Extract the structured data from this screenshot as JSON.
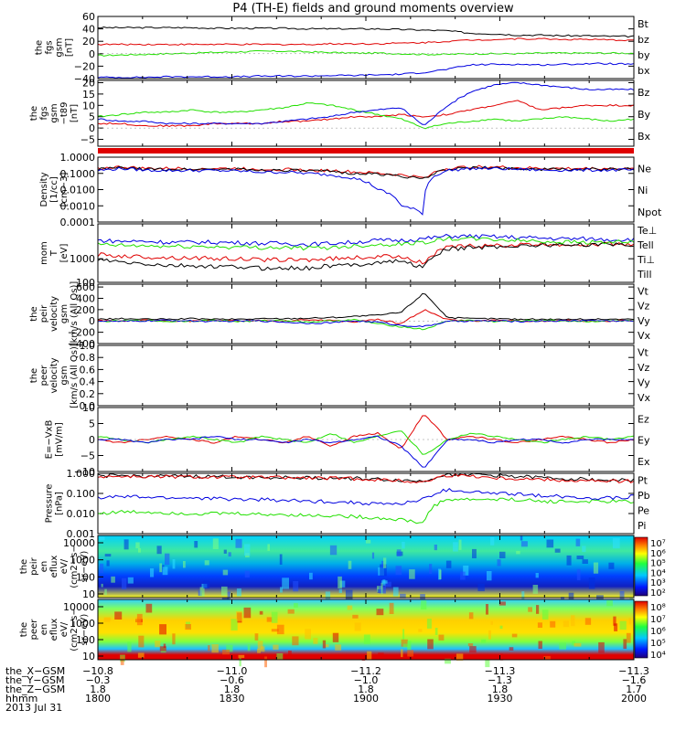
{
  "page": {
    "title": "P4 (TH-E) fields and ground moments overview"
  },
  "colors": {
    "black": "#000000",
    "red": "#e00000",
    "green": "#22e000",
    "blue": "#0000e0"
  },
  "chart_data": [
    {
      "type": "line",
      "ylabel": [
        "the",
        "fgs",
        "gsm",
        "[nT]"
      ],
      "ylim": [
        -40,
        60
      ],
      "yticks": [
        {
          "v": 60,
          "label": "60"
        },
        {
          "v": 40,
          "label": "40"
        },
        {
          "v": 20,
          "label": "20"
        },
        {
          "v": 0,
          "label": "0"
        },
        {
          "v": -20,
          "label": "−20"
        },
        {
          "v": -40,
          "label": "−40"
        }
      ],
      "series": [
        {
          "name": "Bt",
          "color": "#000000",
          "values": [
            42,
            42,
            42,
            42,
            42,
            41,
            41,
            41,
            41,
            40,
            40,
            40,
            40,
            39,
            38,
            37,
            33,
            32,
            30,
            30,
            29,
            29,
            28,
            28
          ]
        },
        {
          "name": "bz",
          "color": "#e00000",
          "values": [
            15,
            15,
            15,
            15,
            15,
            15,
            15,
            15,
            15,
            15,
            16,
            16,
            16,
            17,
            18,
            20,
            22,
            23,
            24,
            24,
            23,
            23,
            22,
            22
          ]
        },
        {
          "name": "by",
          "color": "#22e000",
          "values": [
            -3,
            -2,
            -1,
            0,
            1,
            2,
            3,
            4,
            4,
            3,
            2,
            1,
            1,
            0,
            -1,
            -1,
            0,
            0,
            0,
            1,
            1,
            1,
            1,
            1
          ]
        },
        {
          "name": "bx",
          "color": "#0000e0",
          "values": [
            -38,
            -38,
            -38,
            -37,
            -37,
            -37,
            -37,
            -36,
            -36,
            -36,
            -35,
            -35,
            -34,
            -33,
            -30,
            -25,
            -18,
            -17,
            -17,
            -18,
            -17,
            -16,
            -16,
            -17
          ]
        }
      ]
    },
    {
      "type": "line",
      "ylabel": [
        "the",
        "fgs",
        "gsm",
        "−t89",
        "[nT]"
      ],
      "ylim": [
        -8,
        21
      ],
      "yticks": [
        {
          "v": 20,
          "label": "20"
        },
        {
          "v": 15,
          "label": "15"
        },
        {
          "v": 10,
          "label": "10"
        },
        {
          "v": 5,
          "label": "5"
        },
        {
          "v": 0,
          "label": "0"
        },
        {
          "v": -5,
          "label": "−5"
        }
      ],
      "series": [
        {
          "name": "Bz",
          "color": "#e00000",
          "values": [
            2,
            2,
            1,
            1,
            1,
            2,
            2,
            2,
            3,
            3,
            4,
            5,
            5,
            6,
            5,
            6,
            8,
            10,
            12,
            8,
            9,
            10,
            10,
            10
          ]
        },
        {
          "name": "By",
          "color": "#22e000",
          "values": [
            5,
            6,
            7,
            7,
            8,
            7,
            7,
            8,
            9,
            11,
            10,
            8,
            6,
            4,
            0,
            2,
            3,
            4,
            3,
            4,
            5,
            4,
            3,
            4
          ]
        },
        {
          "name": "Bx",
          "color": "#0000e0",
          "values": [
            4,
            3,
            3,
            2,
            2,
            2,
            2,
            2,
            3,
            4,
            5,
            7,
            8,
            9,
            1,
            10,
            16,
            19,
            20,
            19,
            18,
            17,
            17,
            17
          ]
        }
      ]
    },
    {
      "type": "line",
      "ylabel": [
        "Density",
        "[1/cc]",
        "[cm−3]"
      ],
      "scale": "log",
      "ylim": [
        0.0001,
        1
      ],
      "yticks": [
        {
          "v": 1,
          "label": "1.0000"
        },
        {
          "v": 0.1,
          "label": "0.1000"
        },
        {
          "v": 0.01,
          "label": "0.0100"
        },
        {
          "v": 0.001,
          "label": "0.0010"
        },
        {
          "v": 0.0001,
          "label": "0.0001"
        }
      ],
      "series": [
        {
          "name": "Ne",
          "color": "#e00000",
          "values": [
            0.2,
            0.25,
            0.2,
            0.2,
            0.2,
            0.2,
            0.2,
            0.18,
            0.18,
            0.15,
            0.15,
            0.12,
            0.1,
            0.08,
            0.05,
            0.2,
            0.25,
            0.25,
            0.22,
            0.2,
            0.2,
            0.2,
            0.2,
            0.2
          ]
        },
        {
          "name": "Ni",
          "color": "#000000",
          "values": [
            0.18,
            0.22,
            0.18,
            0.18,
            0.18,
            0.18,
            0.18,
            0.16,
            0.16,
            0.14,
            0.13,
            0.1,
            0.09,
            0.07,
            0.04,
            0.18,
            0.22,
            0.22,
            0.2,
            0.18,
            0.18,
            0.18,
            0.18,
            0.18
          ]
        },
        {
          "name": "Npot",
          "color": "#0000e0",
          "values": [
            0.15,
            0.2,
            0.16,
            0.15,
            0.15,
            0.15,
            0.14,
            0.12,
            0.12,
            0.1,
            0.08,
            0.05,
            0.01,
            0.001,
            0.0003,
            0.15,
            0.2,
            0.2,
            0.18,
            0.16,
            0.16,
            0.16,
            0.16,
            0.16
          ]
        }
      ]
    },
    {
      "type": "line",
      "ylabel": [
        "mom",
        "T",
        "[eV]"
      ],
      "scale": "log",
      "ylim": [
        100,
        30000
      ],
      "yticks": [
        {
          "v": 1000,
          "label": "1000"
        },
        {
          "v": 100,
          "label": "100"
        }
      ],
      "series": [
        {
          "name": "Te⊥",
          "color": "#e00000",
          "values": [
            1500,
            1300,
            1200,
            1100,
            1100,
            1000,
            1000,
            900,
            900,
            900,
            1000,
            1100,
            1200,
            1300,
            600,
            3000,
            3500,
            3500,
            3800,
            4000,
            4000,
            4000,
            4200,
            4200
          ]
        },
        {
          "name": "Tell",
          "color": "#000000",
          "values": [
            900,
            700,
            600,
            500,
            500,
            450,
            450,
            400,
            400,
            400,
            500,
            550,
            700,
            800,
            400,
            2500,
            3000,
            3200,
            3500,
            3800,
            3800,
            4000,
            4000,
            4000
          ]
        },
        {
          "name": "Ti⊥",
          "color": "#0000e0",
          "values": [
            6000,
            5500,
            5500,
            5000,
            5000,
            5000,
            4800,
            4500,
            4500,
            4000,
            4500,
            5000,
            6000,
            6000,
            7000,
            9000,
            9000,
            8500,
            8000,
            7500,
            7000,
            7000,
            6500,
            6500
          ]
        },
        {
          "name": "Till",
          "color": "#22e000",
          "values": [
            4000,
            3600,
            3500,
            3300,
            3300,
            3200,
            3100,
            3000,
            3000,
            2800,
            3000,
            3500,
            4000,
            4200,
            5000,
            7000,
            7000,
            6500,
            6000,
            5500,
            5200,
            5000,
            5000,
            5000
          ]
        }
      ]
    },
    {
      "type": "line",
      "ylabel": [
        "the",
        "peir",
        "velocity",
        "gsm",
        "[km/s (All Qs)]"
      ],
      "ylim": [
        -400,
        650
      ],
      "yticks": [
        {
          "v": 600,
          "label": "600"
        },
        {
          "v": 400,
          "label": "400"
        },
        {
          "v": 200,
          "label": "200"
        },
        {
          "v": 0,
          "label": "0"
        },
        {
          "v": -200,
          "label": "−200"
        },
        {
          "v": -400,
          "label": "−400"
        }
      ],
      "series": [
        {
          "name": "Vt",
          "color": "#000000",
          "values": [
            30,
            40,
            30,
            30,
            40,
            30,
            30,
            40,
            40,
            50,
            60,
            80,
            100,
            150,
            500,
            60,
            40,
            40,
            30,
            30,
            30,
            30,
            30,
            30
          ]
        },
        {
          "name": "Vz",
          "color": "#e00000",
          "values": [
            10,
            0,
            10,
            0,
            -10,
            10,
            0,
            10,
            0,
            20,
            10,
            -20,
            30,
            -50,
            200,
            20,
            0,
            10,
            0,
            0,
            10,
            0,
            0,
            10
          ]
        },
        {
          "name": "Vy",
          "color": "#22e000",
          "values": [
            -10,
            0,
            10,
            -10,
            0,
            10,
            -10,
            0,
            10,
            -20,
            0,
            20,
            -50,
            -100,
            -150,
            0,
            10,
            -10,
            0,
            10,
            0,
            -10,
            0,
            0
          ]
        },
        {
          "name": "Vx",
          "color": "#0000e0",
          "values": [
            0,
            -10,
            0,
            10,
            0,
            -10,
            0,
            0,
            -20,
            -40,
            -30,
            0,
            -20,
            -80,
            -100,
            -10,
            0,
            0,
            -10,
            0,
            0,
            10,
            0,
            0
          ]
        }
      ]
    },
    {
      "type": "line",
      "ylabel": [
        "the",
        "peer",
        "velocity",
        "gsm",
        "[km/s (All Qs)]"
      ],
      "ylim": [
        0,
        1
      ],
      "yticks": [
        {
          "v": 1,
          "label": "1.0"
        },
        {
          "v": 0.8,
          "label": "0.8"
        },
        {
          "v": 0.6,
          "label": "0.6"
        },
        {
          "v": 0.4,
          "label": "0.4"
        },
        {
          "v": 0.2,
          "label": "0.2"
        },
        {
          "v": 0,
          "label": "0.0"
        }
      ],
      "series": [
        {
          "name": "Vt",
          "color": "#000000",
          "values": []
        },
        {
          "name": "Vz",
          "color": "#e00000",
          "values": []
        },
        {
          "name": "Vy",
          "color": "#22e000",
          "values": []
        },
        {
          "name": "Vx",
          "color": "#0000e0",
          "values": []
        }
      ]
    },
    {
      "type": "line",
      "ylabel": [
        "E=−VxB",
        "[mV/m]"
      ],
      "ylim": [
        -10,
        10
      ],
      "yticks": [
        {
          "v": 10,
          "label": "10"
        },
        {
          "v": 5,
          "label": "5"
        },
        {
          "v": 0,
          "label": "0"
        },
        {
          "v": -5,
          "label": "−5"
        },
        {
          "v": -10,
          "label": "−10"
        }
      ],
      "series": [
        {
          "name": "Ez",
          "color": "#e00000",
          "values": [
            0,
            -1,
            0,
            1,
            0,
            -1,
            1,
            0,
            -1,
            1,
            -2,
            1,
            2,
            -3,
            8,
            0,
            1,
            0,
            -1,
            0,
            1,
            0,
            -1,
            0
          ]
        },
        {
          "name": "Ey",
          "color": "#22e000",
          "values": [
            1,
            0,
            -1,
            0,
            1,
            0,
            -1,
            1,
            0,
            -1,
            2,
            -1,
            1,
            3,
            -5,
            0,
            2,
            1,
            0,
            -1,
            0,
            1,
            0,
            1
          ]
        },
        {
          "name": "Ex",
          "color": "#0000e0",
          "values": [
            0,
            0,
            -1,
            0,
            0,
            1,
            0,
            0,
            -1,
            0,
            -1,
            0,
            1,
            -2,
            -9,
            0,
            0,
            -1,
            0,
            0,
            -1,
            0,
            0,
            0
          ]
        }
      ]
    },
    {
      "type": "line",
      "ylabel": [
        "Pressure",
        "[nPa]"
      ],
      "scale": "log",
      "ylim": [
        0.001,
        1
      ],
      "yticks": [
        {
          "v": 1,
          "label": "1.000"
        },
        {
          "v": 0.1,
          "label": "0.100"
        },
        {
          "v": 0.01,
          "label": "0.010"
        },
        {
          "v": 0.001,
          "label": "0.001"
        }
      ],
      "series": [
        {
          "name": "Pt",
          "color": "#000000",
          "values": [
            0.75,
            0.75,
            0.72,
            0.7,
            0.7,
            0.68,
            0.66,
            0.64,
            0.62,
            0.6,
            0.58,
            0.56,
            0.5,
            0.45,
            0.4,
            0.9,
            0.9,
            0.8,
            0.7,
            0.6,
            0.55,
            0.5,
            0.45,
            0.45
          ]
        },
        {
          "name": "Pb",
          "color": "#e00000",
          "values": [
            0.7,
            0.7,
            0.68,
            0.67,
            0.66,
            0.64,
            0.63,
            0.62,
            0.6,
            0.58,
            0.56,
            0.54,
            0.48,
            0.42,
            0.35,
            0.8,
            0.75,
            0.6,
            0.55,
            0.5,
            0.45,
            0.42,
            0.4,
            0.4
          ]
        },
        {
          "name": "Pe",
          "color": "#22e000",
          "values": [
            0.01,
            0.012,
            0.012,
            0.011,
            0.01,
            0.01,
            0.01,
            0.009,
            0.009,
            0.008,
            0.008,
            0.007,
            0.006,
            0.005,
            0.003,
            0.05,
            0.05,
            0.05,
            0.05,
            0.04,
            0.04,
            0.04,
            0.04,
            0.04
          ]
        },
        {
          "name": "Pi",
          "color": "#0000e0",
          "values": [
            0.06,
            0.07,
            0.065,
            0.06,
            0.06,
            0.055,
            0.05,
            0.05,
            0.045,
            0.04,
            0.04,
            0.035,
            0.03,
            0.03,
            0.05,
            0.15,
            0.12,
            0.1,
            0.09,
            0.08,
            0.07,
            0.06,
            0.06,
            0.07
          ]
        }
      ]
    },
    {
      "type": "heatmap",
      "ylabel": [
        "the",
        "peir",
        "en",
        "eflux",
        "eV/",
        "(cm2−s−",
        "sr−eV)"
      ],
      "yticks": [
        {
          "label": "10000"
        },
        {
          "label": "1000"
        },
        {
          "label": "100"
        },
        {
          "label": "10"
        }
      ],
      "colorbar": {
        "ticks": [
          "10⁷",
          "10⁶",
          "10⁵",
          "10⁴",
          "10³",
          "10²"
        ]
      }
    },
    {
      "type": "heatmap",
      "ylabel": [
        "the",
        "peer",
        "en",
        "eflux",
        "eV/",
        "(cm2−s−",
        "sr−eV)"
      ],
      "yticks": [
        {
          "label": "10000"
        },
        {
          "label": "1000"
        },
        {
          "label": "100"
        },
        {
          "label": "10"
        }
      ],
      "colorbar": {
        "ticks": [
          "10⁸",
          "10⁷",
          "10⁶",
          "10⁵",
          "10⁴"
        ]
      }
    }
  ],
  "xaxis": {
    "rows": [
      {
        "label": "the_X−GSM",
        "values": [
          "−10.8",
          "−11.0",
          "−11.2",
          "−11.3",
          "−11.3"
        ]
      },
      {
        "label": "the_Y−GSM",
        "values": [
          "−0.3",
          "−0.6",
          "−1.0",
          "−1.3",
          "−1.6"
        ]
      },
      {
        "label": "the_Z−GSM",
        "values": [
          "1.8",
          "1.8",
          "1.8",
          "1.8",
          "1.7"
        ]
      },
      {
        "label": "hhmm",
        "values": [
          "1800",
          "1830",
          "1900",
          "1930",
          "2000"
        ]
      }
    ],
    "date": "2013 Jul 31"
  }
}
